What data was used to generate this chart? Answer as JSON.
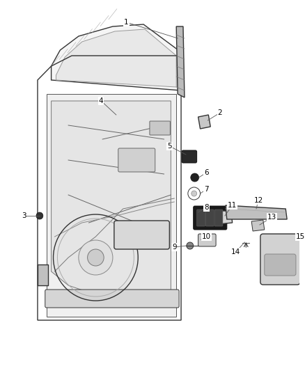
{
  "bg_color": "#ffffff",
  "line_color": "#333333",
  "gray_color": "#888888",
  "dark_color": "#222222",
  "light_gray": "#cccccc",
  "mid_gray": "#aaaaaa",
  "figsize": [
    4.38,
    5.33
  ],
  "dpi": 100
}
